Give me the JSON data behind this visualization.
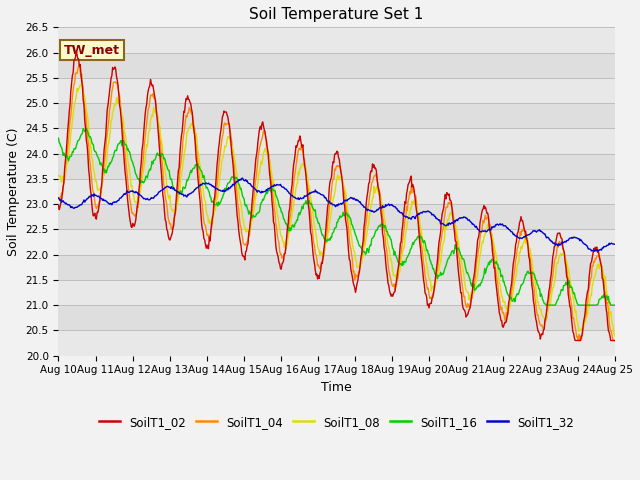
{
  "title": "Soil Temperature Set 1",
  "xlabel": "Time",
  "ylabel": "Soil Temperature (C)",
  "ylim": [
    20.0,
    26.5
  ],
  "x_tick_labels": [
    "Aug 10",
    "Aug 11",
    "Aug 12",
    "Aug 13",
    "Aug 14",
    "Aug 15",
    "Aug 16",
    "Aug 17",
    "Aug 18",
    "Aug 19",
    "Aug 20",
    "Aug 21",
    "Aug 22",
    "Aug 23",
    "Aug 24",
    "Aug 25"
  ],
  "annotation_text": "TW_met",
  "annotation_color": "#8B0000",
  "annotation_bg": "#FFFACD",
  "annotation_border": "#8B6914",
  "colors": {
    "SoilT1_02": "#CC0000",
    "SoilT1_04": "#FF8C00",
    "SoilT1_08": "#DDDD00",
    "SoilT1_16": "#00CC00",
    "SoilT1_32": "#0000CC"
  },
  "band_colors": [
    "#E8E8E8",
    "#DEDEDE"
  ],
  "grid_color": "#C8C8C8",
  "title_fontsize": 11,
  "axis_label_fontsize": 9,
  "tick_fontsize": 7.5
}
